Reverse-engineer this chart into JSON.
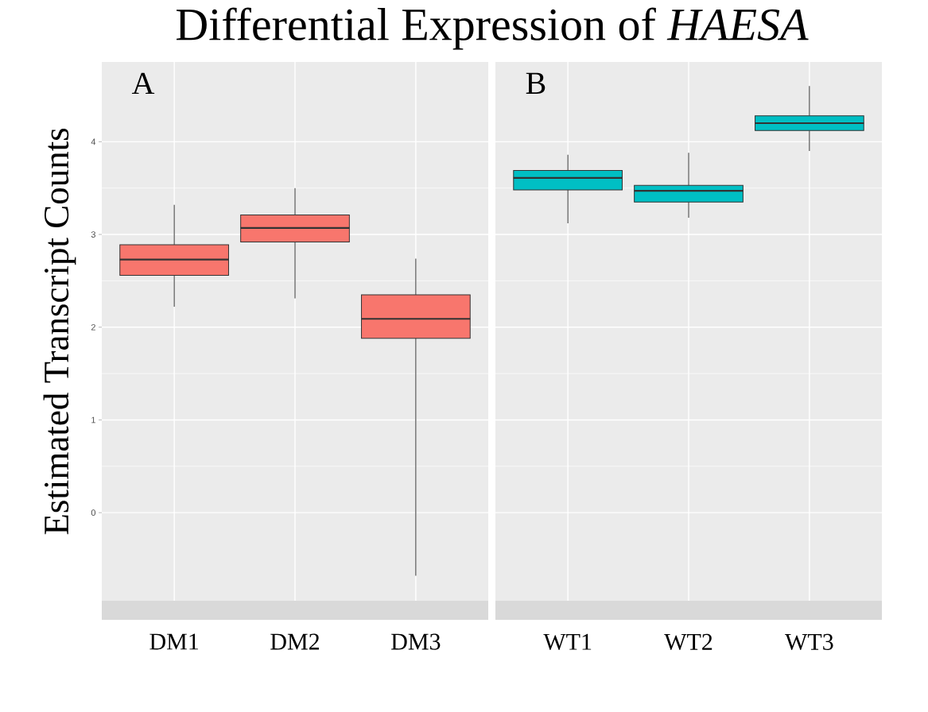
{
  "chart_data": [
    {
      "type": "box",
      "title": "Differential Expression of *HAESA*",
      "ylabel": "Estimated Transcript Counts",
      "categories": [
        "DM1",
        "DM2",
        "DM3"
      ],
      "color": "#f8766d",
      "boxes": [
        {
          "low": 2.22,
          "q1": 2.56,
          "median": 2.73,
          "q3": 2.89,
          "high": 3.32
        },
        {
          "low": 2.31,
          "q1": 2.92,
          "median": 3.07,
          "q3": 3.21,
          "high": 3.5
        },
        {
          "low": -0.68,
          "q1": 1.88,
          "median": 2.09,
          "q3": 2.35,
          "high": 2.74
        }
      ],
      "ylim": [
        -0.95,
        4.86
      ],
      "yticks": [
        0,
        1,
        2,
        3,
        4
      ],
      "grid": true,
      "annotations": [
        "A"
      ]
    },
    {
      "type": "box",
      "categories": [
        "WT1",
        "WT2",
        "WT3"
      ],
      "color": "#00bfc4",
      "boxes": [
        {
          "low": 3.12,
          "q1": 3.48,
          "median": 3.61,
          "q3": 3.69,
          "high": 3.86
        },
        {
          "low": 3.18,
          "q1": 3.35,
          "median": 3.47,
          "q3": 3.53,
          "high": 3.88
        },
        {
          "low": 3.9,
          "q1": 4.12,
          "median": 4.2,
          "q3": 4.28,
          "high": 4.6
        }
      ],
      "ylim": [
        -0.95,
        4.86
      ],
      "yticks": [
        0,
        1,
        2,
        3,
        4
      ],
      "grid": true,
      "tick_labels": "x",
      "annotations": [
        "B"
      ]
    }
  ]
}
